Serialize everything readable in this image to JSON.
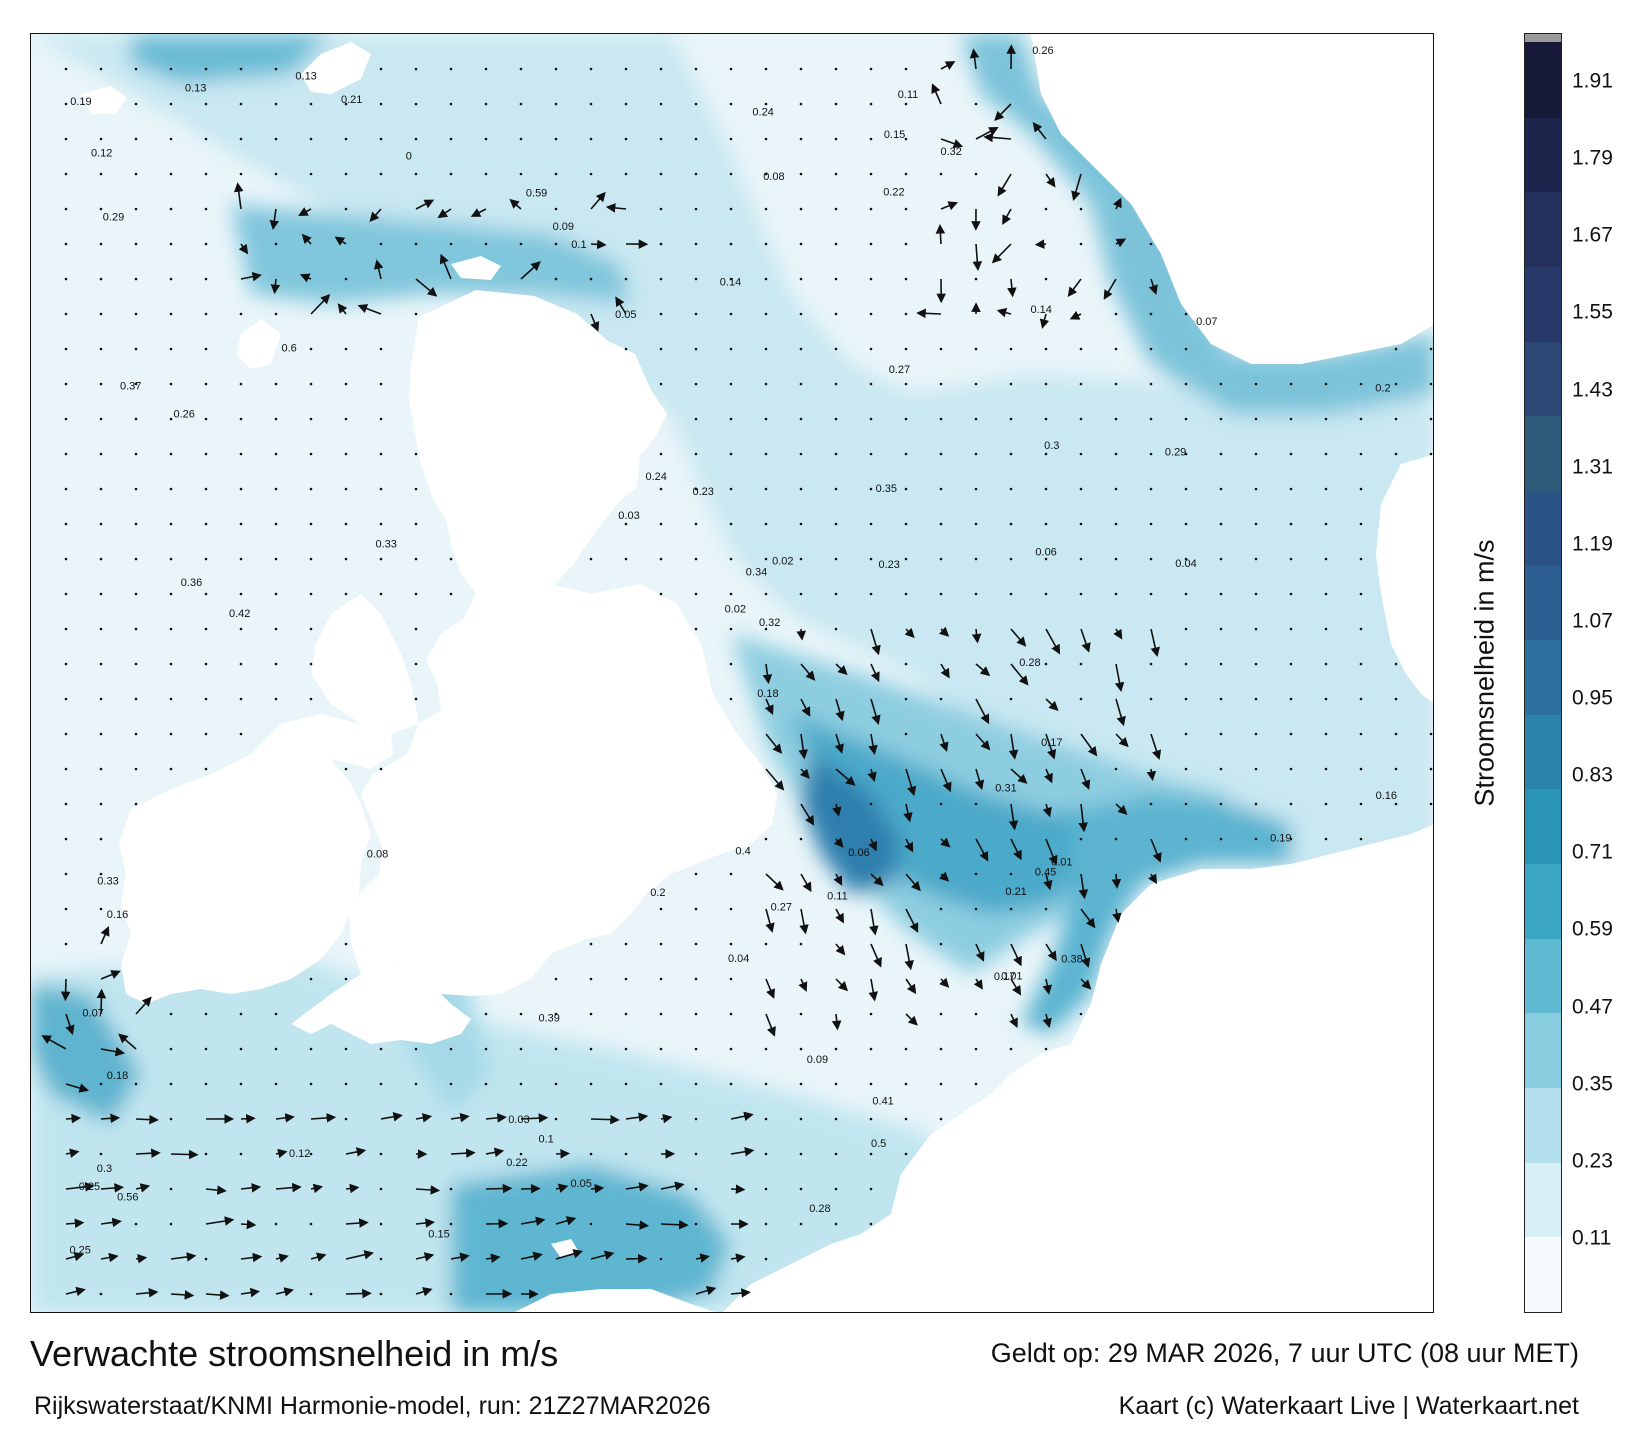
{
  "colors": {
    "land": "#ffffff",
    "water_low": "#eef7fa",
    "water_mid": "#8fcfe0",
    "water_high": "#2a8fb5",
    "water_max": "#1e5a8c",
    "arrow": "#111111"
  },
  "map": {
    "units": "m/s"
  },
  "colorbar": {
    "label": "Stroomsnelheid in m/s",
    "ticks": [
      "0.11",
      "0.23",
      "0.35",
      "0.47",
      "0.59",
      "0.71",
      "0.83",
      "0.95",
      "1.07",
      "1.19",
      "1.31",
      "1.43",
      "1.55",
      "1.67",
      "1.79",
      "1.91"
    ],
    "colors": [
      "#f7fbfd",
      "#d9eff6",
      "#b3e0ec",
      "#88cde0",
      "#5fbad2",
      "#3aa6c3",
      "#2a94b6",
      "#2a83aa",
      "#2b709e",
      "#2c5e92",
      "#2c5386",
      "#2e5b7a",
      "#2b4876",
      "#27396a",
      "#23305c",
      "#1d254c",
      "#161a38"
    ]
  },
  "footer": {
    "title": "Verwachte stroomsnelheid in m/s",
    "model": "Rijkswaterstaat/KNMI Harmonie-model, run: 21Z27MAR2026",
    "valid": "Geldt op: 29 MAR 2026, 7 uur UTC (08 uur MET)",
    "credit": "Kaart (c) Waterkaart Live | Waterkaart.net"
  },
  "current_labels": [
    {
      "t": "0.1"
    },
    {
      "t": "0.14"
    },
    {
      "t": "0.08"
    },
    {
      "t": "0.07"
    },
    {
      "t": "0.09"
    },
    {
      "t": "0.05"
    },
    {
      "t": "0.12"
    },
    {
      "t": "0.13"
    },
    {
      "t": "0.11"
    },
    {
      "t": "0.16"
    },
    {
      "t": "0.17"
    },
    {
      "t": "0.15"
    },
    {
      "t": "0.18"
    },
    {
      "t": "0.06"
    },
    {
      "t": "0.04"
    },
    {
      "t": "0.03"
    },
    {
      "t": "0.19"
    },
    {
      "t": "0.21"
    },
    {
      "t": "0.2"
    },
    {
      "t": "0.23"
    },
    {
      "t": "0.24"
    },
    {
      "t": "0.26"
    },
    {
      "t": "0.32"
    },
    {
      "t": "0.28"
    },
    {
      "t": "0.25"
    },
    {
      "t": "0.3"
    },
    {
      "t": "0.27"
    },
    {
      "t": "0.35"
    },
    {
      "t": "0.34"
    },
    {
      "t": "0.37"
    },
    {
      "t": "0.33"
    },
    {
      "t": "0.41"
    },
    {
      "t": "0.59"
    },
    {
      "t": "0.6"
    },
    {
      "t": "0.56"
    },
    {
      "t": "0.45"
    },
    {
      "t": "0.5"
    },
    {
      "t": "0.42"
    },
    {
      "t": "0.39"
    },
    {
      "t": "0.29"
    },
    {
      "t": "0.22"
    },
    {
      "t": "0.02"
    },
    {
      "t": "0.01"
    },
    {
      "t": "0"
    },
    {
      "t": "0.36"
    },
    {
      "t": "0.38"
    },
    {
      "t": "0.4"
    },
    {
      "t": "0.31"
    },
    {
      "t": "0.12"
    },
    {
      "t": "0.14"
    },
    {
      "t": "0.09"
    },
    {
      "t": "0.07"
    },
    {
      "t": "0.1"
    },
    {
      "t": "0.17"
    },
    {
      "t": "0.06"
    },
    {
      "t": "0.13"
    },
    {
      "t": "0.16"
    },
    {
      "t": "0.11"
    },
    {
      "t": "0.05"
    },
    {
      "t": "0.08"
    },
    {
      "t": "0.15"
    },
    {
      "t": "0.04"
    },
    {
      "t": "0.2"
    },
    {
      "t": "0.18"
    },
    {
      "t": "0.03"
    },
    {
      "t": "0.19"
    },
    {
      "t": "0.21"
    },
    {
      "t": "0.22"
    },
    {
      "t": "0.26"
    },
    {
      "t": "0.24"
    },
    {
      "t": "0.23"
    },
    {
      "t": "0.28"
    },
    {
      "t": "0.25"
    },
    {
      "t": "0.27"
    },
    {
      "t": "0.29"
    },
    {
      "t": "0.01"
    },
    {
      "t": "0.02"
    },
    {
      "t": "0.3"
    },
    {
      "t": "0.32"
    },
    {
      "t": "0.33"
    }
  ]
}
